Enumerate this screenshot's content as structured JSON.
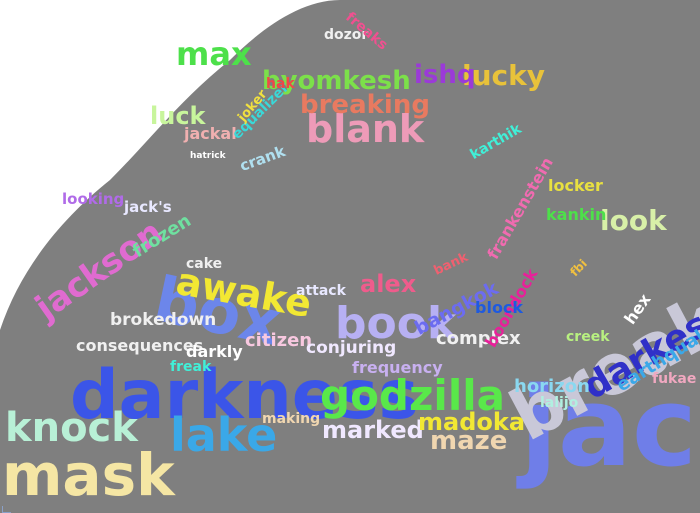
{
  "cloud": {
    "background_shape_color": "#7f7f7f",
    "page_color": "#ffffff",
    "words": [
      {
        "text": "darkness",
        "color": "#3b55e8"
      },
      {
        "text": "jack",
        "color": "#6f7ee8"
      },
      {
        "text": "mask",
        "color": "#f5e6a4"
      },
      {
        "text": "break",
        "color": "#c9c8d8"
      },
      {
        "text": "box",
        "color": "#6c86ea"
      },
      {
        "text": "godzilla",
        "color": "#59e84a"
      },
      {
        "text": "book",
        "color": "#b7b0f3"
      },
      {
        "text": "knock",
        "color": "#b8f0d6"
      },
      {
        "text": "lake",
        "color": "#3aa8e8"
      },
      {
        "text": "awake",
        "color": "#f2e833"
      },
      {
        "text": "blank",
        "color": "#ee9bb8"
      },
      {
        "text": "max",
        "color": "#4de04a"
      },
      {
        "text": "darkest",
        "color": "#3030c8"
      },
      {
        "text": "jackson",
        "color": "#e06bd0"
      },
      {
        "text": "byomkesh",
        "color": "#7ce04a"
      },
      {
        "text": "breaking",
        "color": "#e87a60"
      },
      {
        "text": "lucky",
        "color": "#e8c23a"
      },
      {
        "text": "ishq",
        "color": "#9b3ad8"
      },
      {
        "text": "look",
        "color": "#d8f0a8"
      },
      {
        "text": "maze",
        "color": "#f0d6b0"
      },
      {
        "text": "marked",
        "color": "#f0e8ff"
      },
      {
        "text": "madoka",
        "color": "#f2e833"
      },
      {
        "text": "alex",
        "color": "#ef5c8c"
      },
      {
        "text": "luck",
        "color": "#c8f59c"
      },
      {
        "text": "complex",
        "color": "#f0f0f0"
      },
      {
        "text": "horizon",
        "color": "#8ad8f0"
      },
      {
        "text": "earthquake",
        "color": "#3aa8e8"
      },
      {
        "text": "frequency",
        "color": "#c8b0f0"
      },
      {
        "text": "citizen",
        "color": "#f8c8e0"
      },
      {
        "text": "frozen",
        "color": "#6fe0a0"
      },
      {
        "text": "consequences",
        "color": "#f0f0f0"
      },
      {
        "text": "brokedown",
        "color": "#f0f0f0"
      },
      {
        "text": "conjuring",
        "color": "#f0e8ff"
      },
      {
        "text": "bangkok",
        "color": "#6c6cf0"
      },
      {
        "text": "kankin",
        "color": "#4de04a"
      },
      {
        "text": "locker",
        "color": "#e8e040"
      },
      {
        "text": "boondock",
        "color": "#e8209a"
      },
      {
        "text": "block",
        "color": "#1e5ae0"
      },
      {
        "text": "hex",
        "color": "#ffffff"
      },
      {
        "text": "attack",
        "color": "#e8e8ff"
      },
      {
        "text": "jack's",
        "color": "#e8e8ff"
      },
      {
        "text": "looking",
        "color": "#b06be8"
      },
      {
        "text": "crank",
        "color": "#b0e0f0"
      },
      {
        "text": "jackal",
        "color": "#f0b0b0"
      },
      {
        "text": "equalizer",
        "color": "#3ad8d8"
      },
      {
        "text": "dozor",
        "color": "#f0f0f0"
      },
      {
        "text": "frankenstein",
        "color": "#f06bb0"
      },
      {
        "text": "darkly",
        "color": "#ffffff"
      },
      {
        "text": "freak",
        "color": "#40f0d8"
      },
      {
        "text": "cake",
        "color": "#f0f0f0"
      },
      {
        "text": "karthik",
        "color": "#40f0d8"
      },
      {
        "text": "creek",
        "color": "#b8f080"
      },
      {
        "text": "making",
        "color": "#f0d6b0"
      },
      {
        "text": "lalijo",
        "color": "#b0f0e0"
      },
      {
        "text": "fukae",
        "color": "#f0a8c0"
      },
      {
        "text": "hak",
        "color": "#f04848"
      },
      {
        "text": "freaks",
        "color": "#f05090"
      },
      {
        "text": "joker",
        "color": "#f0e040"
      },
      {
        "text": "hatrick",
        "color": "#ffffff"
      },
      {
        "text": "bank",
        "color": "#f06070"
      },
      {
        "text": "fbi",
        "color": "#f0c040"
      }
    ]
  }
}
